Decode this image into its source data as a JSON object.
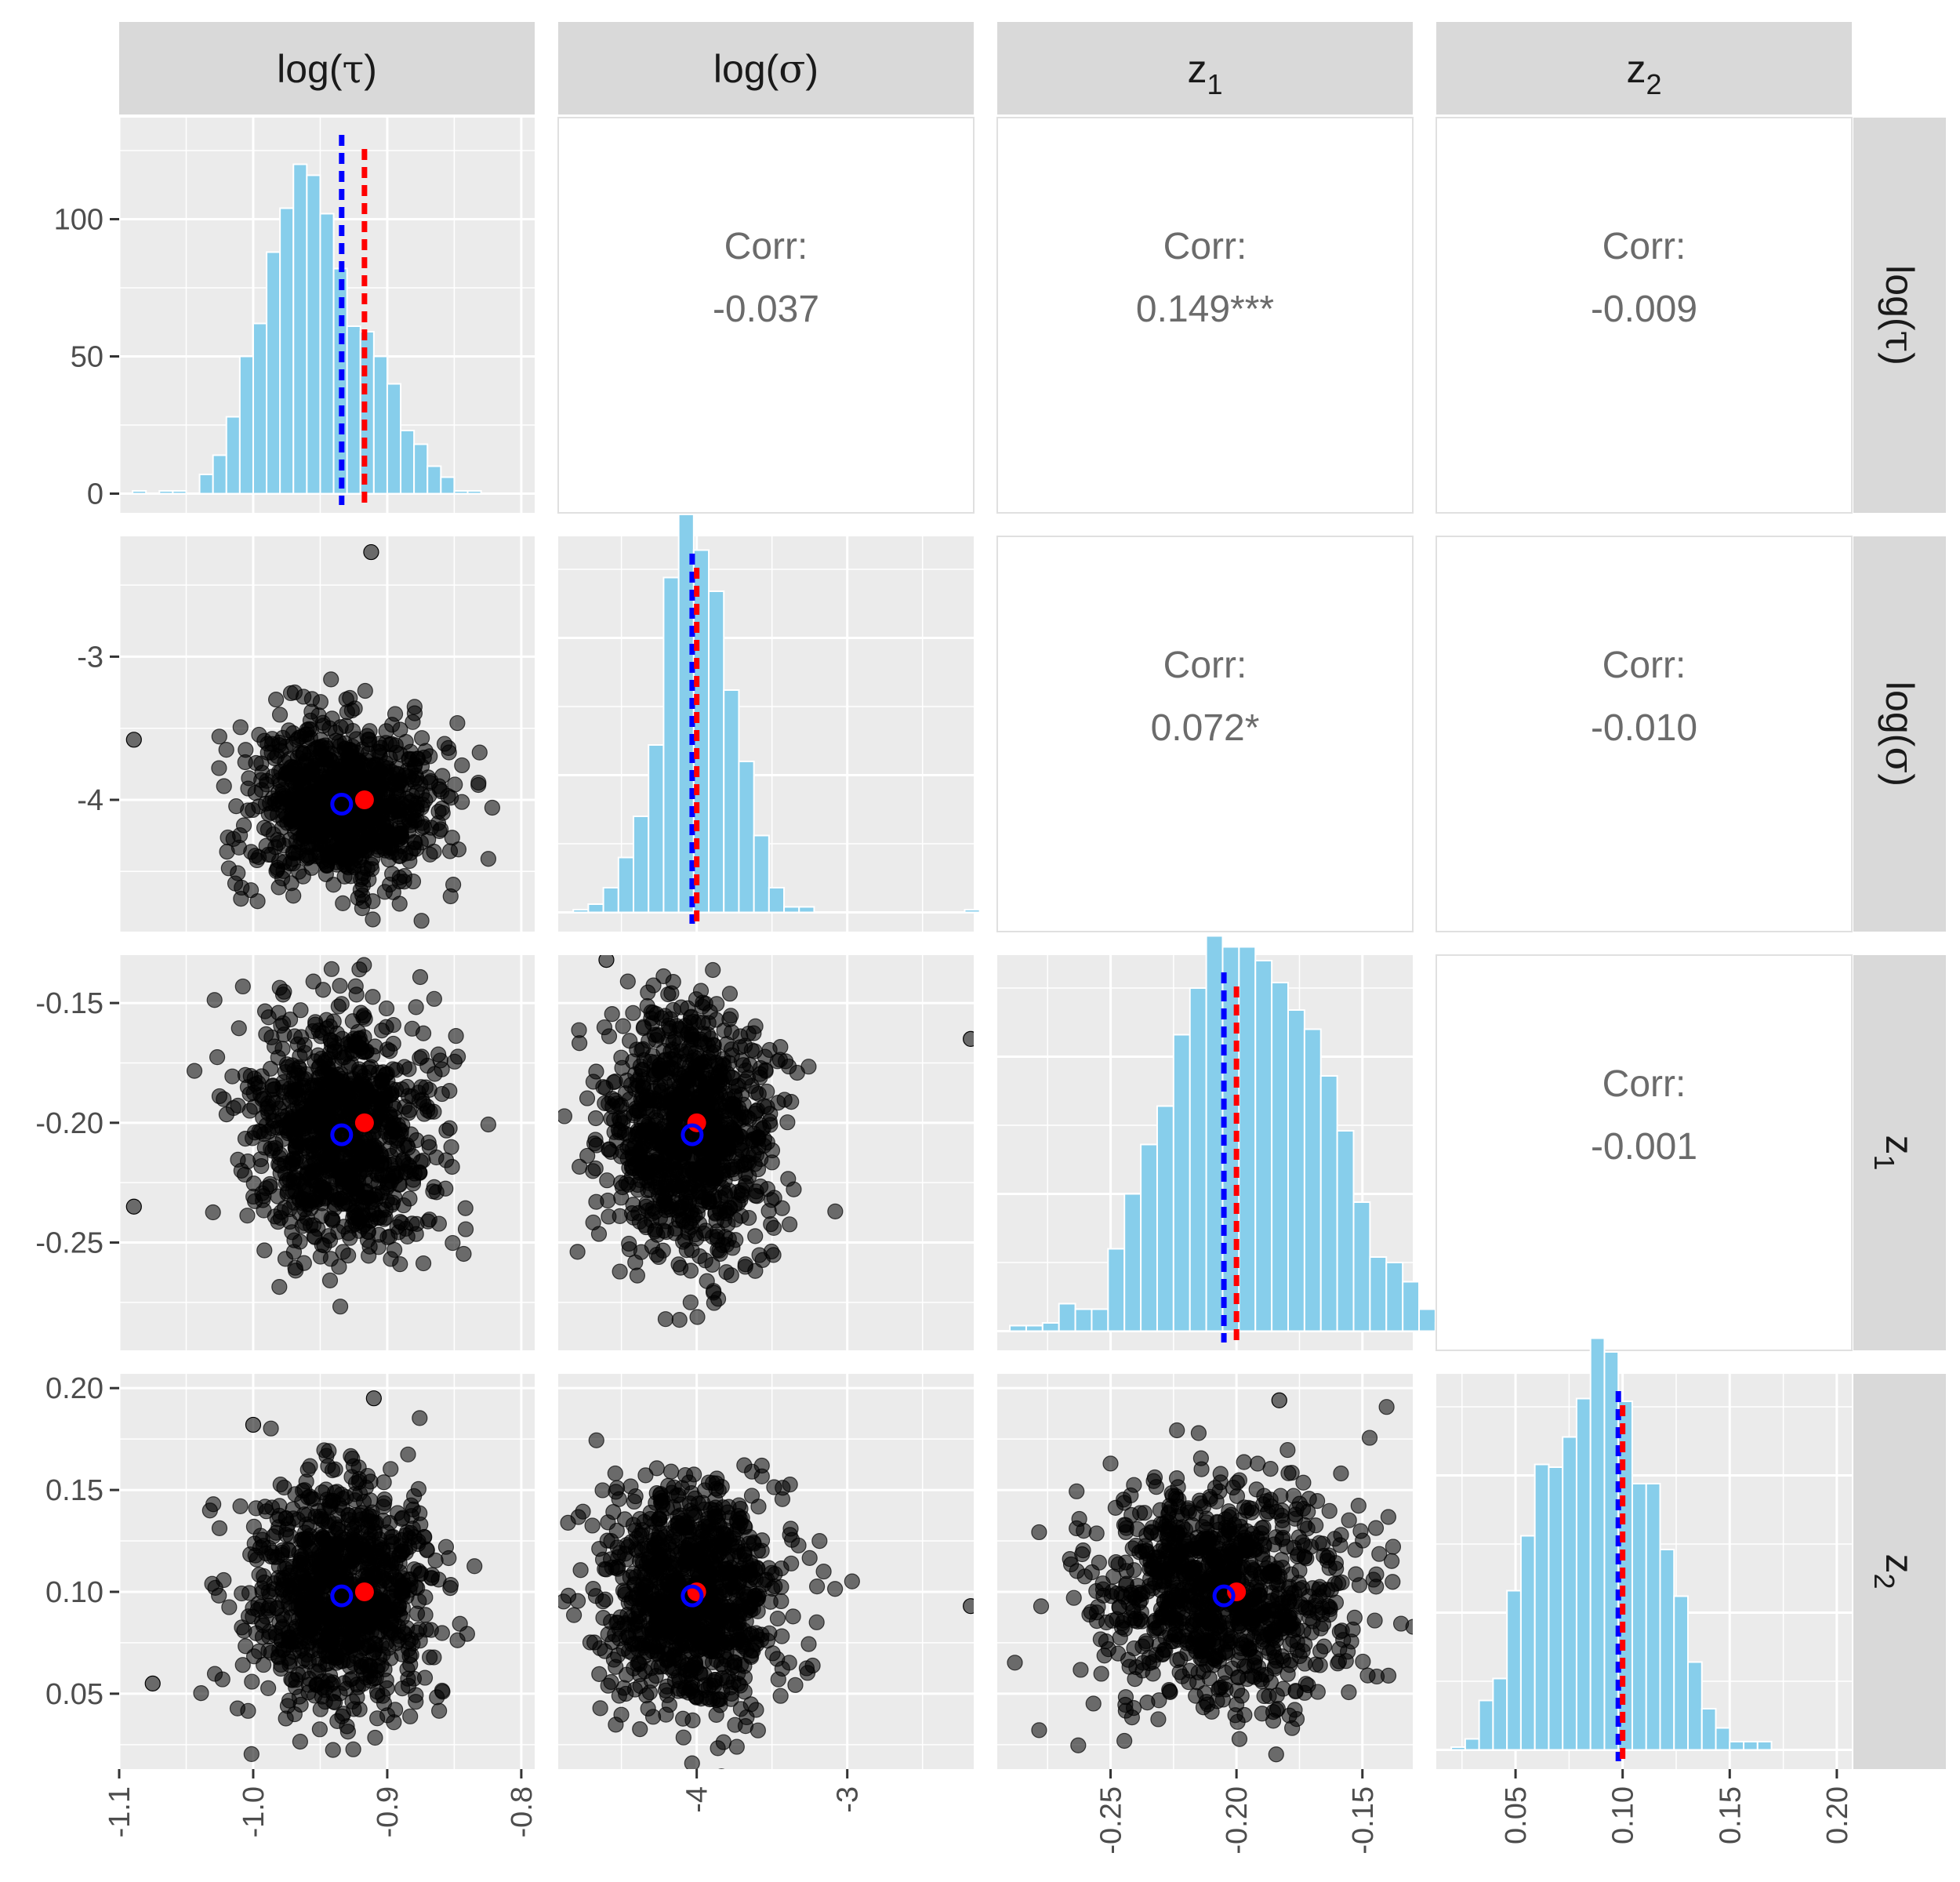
{
  "chart_data": {
    "type": "scatter-matrix",
    "title": "",
    "variables": [
      {
        "key": "tau",
        "label": "log(τ)",
        "base": "log(",
        "greek": "τ",
        "close": ")",
        "range": [
          -1.1,
          -0.79
        ],
        "ticks": [
          -1.1,
          -1.0,
          -0.9,
          -0.8
        ],
        "tick_labels": [
          "-1.1",
          "-1.0",
          "-0.9",
          "-0.8"
        ]
      },
      {
        "key": "sigma",
        "label": "log(σ)",
        "base": "log(",
        "greek": "σ",
        "close": ")",
        "range": [
          -4.92,
          -2.16
        ],
        "ticks": [
          -4,
          -3
        ],
        "tick_labels": [
          "-4",
          "-3"
        ]
      },
      {
        "key": "z1",
        "label": "z1",
        "base": "z",
        "sub": "1",
        "range": [
          -0.295,
          -0.13
        ],
        "ticks": [
          -0.25,
          -0.2,
          -0.15
        ],
        "tick_labels": [
          "-0.25",
          "-0.20",
          "-0.15"
        ]
      },
      {
        "key": "z2",
        "label": "z2",
        "base": "z",
        "sub": "2",
        "range": [
          0.013,
          0.207
        ],
        "ticks": [
          0.05,
          0.1,
          0.15,
          0.2
        ],
        "tick_labels": [
          "0.05",
          "0.10",
          "0.15",
          "0.20"
        ]
      }
    ],
    "diag_count_axis": {
      "range": [
        -7,
        137
      ],
      "ticks": [
        0,
        50,
        100
      ],
      "tick_labels": [
        "0",
        "50",
        "100"
      ]
    },
    "histograms": [
      {
        "variable": "tau",
        "bin_start": -1.09,
        "bin_width": 0.01,
        "counts": [
          1,
          0,
          1,
          1,
          0,
          7,
          14,
          28,
          50,
          62,
          88,
          104,
          120,
          116,
          102,
          82,
          61,
          59,
          50,
          40,
          23,
          18,
          10,
          6,
          1,
          1
        ],
        "mean": -0.934,
        "true": -0.917
      },
      {
        "variable": "sigma",
        "bin_start": -4.82,
        "bin_width": 0.1,
        "counts": [
          1,
          3,
          9,
          20,
          35,
          61,
          122,
          145,
          132,
          117,
          81,
          55,
          28,
          9,
          2,
          2,
          0,
          0,
          0,
          0,
          0,
          0,
          0,
          0,
          0,
          0,
          1
        ],
        "mean": -4.03,
        "true": -4.0
      },
      {
        "variable": "z1",
        "bin_start": -0.29,
        "bin_width": 0.0065,
        "counts": [
          2,
          2,
          3,
          10,
          8,
          8,
          30,
          50,
          68,
          82,
          108,
          125,
          144,
          140,
          140,
          135,
          127,
          117,
          110,
          93,
          73,
          47,
          27,
          25,
          18,
          8,
          3
        ],
        "mean": -0.205,
        "true": -0.2
      },
      {
        "variable": "z2",
        "bin_start": 0.02,
        "bin_width": 0.0065,
        "counts": [
          1,
          4,
          18,
          26,
          58,
          78,
          104,
          103,
          114,
          128,
          150,
          145,
          127,
          97,
          97,
          73,
          56,
          32,
          15,
          8,
          3,
          3,
          3
        ],
        "mean": 0.098,
        "true": 0.1
      }
    ],
    "correlations": [
      {
        "row": "tau",
        "col": "sigma",
        "label": "Corr:",
        "value": "-0.037"
      },
      {
        "row": "tau",
        "col": "z1",
        "label": "Corr:",
        "value": "0.149***"
      },
      {
        "row": "tau",
        "col": "z2",
        "label": "Corr:",
        "value": "-0.009"
      },
      {
        "row": "sigma",
        "col": "z1",
        "label": "Corr:",
        "value": "0.072*"
      },
      {
        "row": "sigma",
        "col": "z2",
        "label": "Corr:",
        "value": "-0.010"
      },
      {
        "row": "z1",
        "col": "z2",
        "label": "Corr:",
        "value": "-0.001"
      }
    ],
    "scatter": {
      "n_points": 1000,
      "means": {
        "tau": -0.934,
        "sigma": -4.03,
        "z1": -0.205,
        "z2": 0.098
      },
      "sds": {
        "tau": 0.035,
        "sigma": 0.28,
        "z1": 0.025,
        "z2": 0.028
      },
      "true": {
        "tau": -0.917,
        "sigma": -4.0,
        "z1": -0.2,
        "z2": 0.1
      },
      "outliers": [
        {
          "tau": -0.912,
          "sigma": -2.27
        },
        {
          "tau": -1.089,
          "sigma": -3.58
        },
        {
          "sigma": -2.18,
          "z1": -0.165
        },
        {
          "sigma": -2.18,
          "z2": 0.093
        },
        {
          "tau": -1.089,
          "z1": -0.235
        },
        {
          "tau": -0.91,
          "z2": 0.195
        },
        {
          "tau": -1.0,
          "z2": 0.182
        },
        {
          "sigma": -4.6,
          "z1": -0.132
        },
        {
          "z1": -0.183,
          "z2": 0.194
        },
        {
          "tau": -1.075,
          "z2": 0.055
        }
      ],
      "point_color": "#000000",
      "point_opacity": 0.55
    },
    "mean_color": "#0000ff",
    "true_color": "#ff0000",
    "bar_color": "#87ceeb",
    "grid": true
  }
}
